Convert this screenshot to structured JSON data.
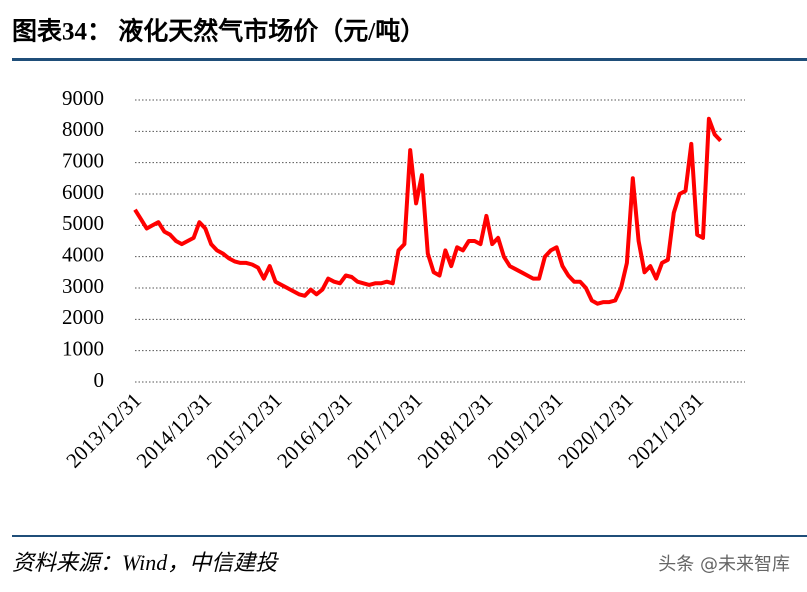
{
  "header": {
    "title": "图表34：  液化天然气市场价（元/吨）"
  },
  "footer": {
    "source": "资料来源：Wind，中信建投",
    "watermark": "头条 @未来智库"
  },
  "chart_data": {
    "type": "line",
    "color": "#ff0000",
    "grid": true,
    "ylim": [
      0,
      9000
    ],
    "yticks": [
      0,
      1000,
      2000,
      3000,
      4000,
      5000,
      6000,
      7000,
      8000,
      9000
    ],
    "categories": [
      "2013/12/31",
      null,
      null,
      null,
      null,
      null,
      null,
      null,
      null,
      null,
      null,
      null,
      "2014/12/31",
      null,
      null,
      null,
      null,
      null,
      null,
      null,
      null,
      null,
      null,
      null,
      "2015/12/31",
      null,
      null,
      null,
      null,
      null,
      null,
      null,
      null,
      null,
      null,
      null,
      "2016/12/31",
      null,
      null,
      null,
      null,
      null,
      null,
      null,
      null,
      null,
      null,
      null,
      "2017/12/31",
      null,
      null,
      null,
      null,
      null,
      null,
      null,
      null,
      null,
      null,
      null,
      "2018/12/31",
      null,
      null,
      null,
      null,
      null,
      null,
      null,
      null,
      null,
      null,
      null,
      "2019/12/31",
      null,
      null,
      null,
      null,
      null,
      null,
      null,
      null,
      null,
      null,
      null,
      "2020/12/31",
      null,
      null,
      null,
      null,
      null,
      null,
      null,
      null,
      null,
      null,
      null,
      "2021/12/31",
      null,
      null,
      null,
      null
    ],
    "values": [
      5500,
      5200,
      4900,
      5000,
      5100,
      4800,
      4700,
      4500,
      4400,
      4500,
      4600,
      5100,
      4900,
      4400,
      4200,
      4100,
      3950,
      3850,
      3800,
      3800,
      3750,
      3650,
      3300,
      3700,
      3200,
      3100,
      3000,
      2900,
      2800,
      2750,
      2950,
      2800,
      2950,
      3300,
      3200,
      3150,
      3400,
      3350,
      3200,
      3150,
      3100,
      3150,
      3150,
      3200,
      3150,
      4200,
      4400,
      7400,
      5700,
      6600,
      4100,
      3500,
      3400,
      4200,
      3700,
      4300,
      4200,
      4500,
      4500,
      4400,
      5300,
      4400,
      4600,
      4000,
      3700,
      3600,
      3500,
      3400,
      3300,
      3300,
      4000,
      4200,
      4300,
      3700,
      3400,
      3200,
      3200,
      3000,
      2600,
      2500,
      2550,
      2550,
      2600,
      3000,
      3800,
      6500,
      4500,
      3500,
      3700,
      3300,
      3800,
      3900,
      5400,
      6000,
      6100,
      7600,
      4700,
      4600,
      8400,
      7900,
      7700
    ]
  }
}
